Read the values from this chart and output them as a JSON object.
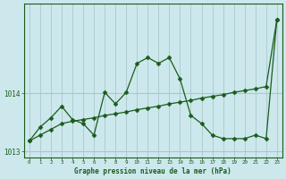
{
  "title": "Graphe pression niveau de la mer (hPa)",
  "bg_color": "#cce8ed",
  "grid_color": "#aac8cc",
  "line_color": "#1a5c1a",
  "x": [
    0,
    1,
    2,
    3,
    4,
    5,
    6,
    7,
    8,
    9,
    10,
    11,
    12,
    13,
    14,
    15,
    16,
    17,
    18,
    19,
    20,
    21,
    22,
    23
  ],
  "y_trend": [
    1013.18,
    1013.28,
    1013.38,
    1013.48,
    1013.52,
    1013.55,
    1013.58,
    1013.62,
    1013.65,
    1013.68,
    1013.72,
    1013.75,
    1013.78,
    1013.82,
    1013.85,
    1013.88,
    1013.92,
    1013.95,
    1013.98,
    1014.02,
    1014.05,
    1014.08,
    1014.12,
    1015.28
  ],
  "y_volatile": [
    1013.18,
    1013.42,
    1013.58,
    1013.78,
    1013.55,
    1013.48,
    1013.28,
    1014.02,
    1013.82,
    1014.02,
    1014.52,
    1014.62,
    1014.52,
    1014.62,
    1014.25,
    1013.62,
    1013.48,
    1013.28,
    1013.22,
    1013.22,
    1013.22,
    1013.28,
    1013.22,
    1015.28
  ],
  "ylim": [
    1012.9,
    1015.55
  ],
  "yticks": [
    1013,
    1014
  ],
  "xlim": [
    -0.5,
    23.5
  ]
}
